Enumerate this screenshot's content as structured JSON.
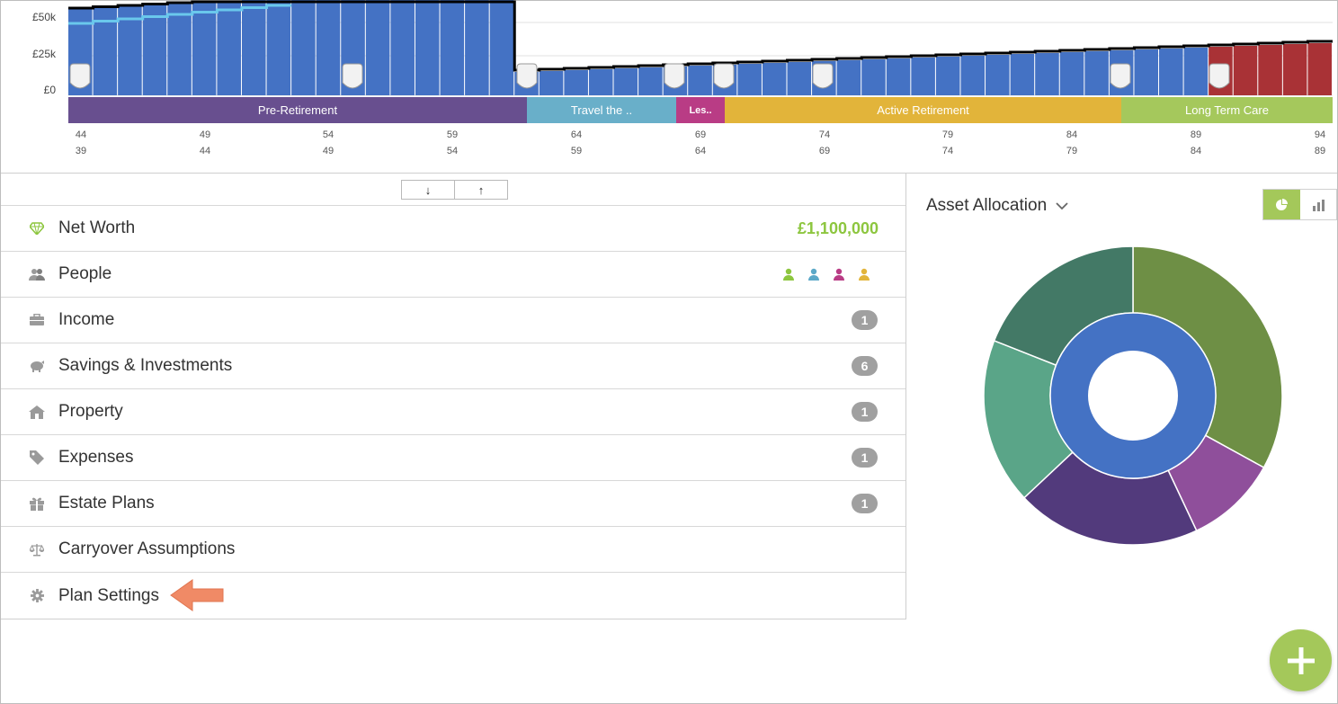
{
  "timeline": {
    "y_axis": [
      "£50k",
      "£25k",
      "£0"
    ],
    "phases": [
      {
        "label": "Pre-Retirement",
        "color": "#684f8f"
      },
      {
        "label": "Travel the ..",
        "color": "#69afc9"
      },
      {
        "label": "Les..",
        "color": "#b93c85"
      },
      {
        "label": "Active Retirement",
        "color": "#e2b43a"
      },
      {
        "label": "Long Term Care",
        "color": "#a5c85c"
      }
    ],
    "ages_primary": [
      "44",
      "49",
      "54",
      "59",
      "64",
      "69",
      "74",
      "79",
      "84",
      "89",
      "94"
    ],
    "ages_secondary": [
      "39",
      "44",
      "49",
      "54",
      "59",
      "64",
      "69",
      "74",
      "79",
      "84",
      "89"
    ],
    "bar_color": "#4472c4",
    "shortfall_color": "#a93236",
    "line_color": "#000000",
    "target_line_color": "#6ac8ec"
  },
  "sort": {
    "down": "↓",
    "up": "↑"
  },
  "rows": [
    {
      "label": "Net Worth",
      "icon": "diamond-icon",
      "value": "£1,100,000"
    },
    {
      "label": "People",
      "icon": "people-icon"
    },
    {
      "label": "Income",
      "icon": "briefcase-icon",
      "badge": "1"
    },
    {
      "label": "Savings & Investments",
      "icon": "piggy-bank-icon",
      "badge": "6"
    },
    {
      "label": "Property",
      "icon": "home-icon",
      "badge": "1"
    },
    {
      "label": "Expenses",
      "icon": "tag-icon",
      "badge": "1"
    },
    {
      "label": "Estate Plans",
      "icon": "gift-icon",
      "badge": "1"
    },
    {
      "label": "Carryover Assumptions",
      "icon": "scales-icon"
    },
    {
      "label": "Plan Settings",
      "icon": "gear-icon"
    }
  ],
  "people_colors": [
    "#8dc63f",
    "#5ba8c8",
    "#b93c85",
    "#e2b43a"
  ],
  "allocation": {
    "title": "Asset Allocation",
    "outer_segments": [
      {
        "color": "#6e8f45",
        "value": 33
      },
      {
        "color": "#8f4f9b",
        "value": 10
      },
      {
        "color": "#523a7c",
        "value": 20
      },
      {
        "color": "#5aa588",
        "value": 18
      },
      {
        "color": "#437966",
        "value": 19
      }
    ],
    "inner_color": "#4472c4"
  },
  "colors": {
    "accent": "#a4c85a",
    "pointer": "#f08a66"
  }
}
